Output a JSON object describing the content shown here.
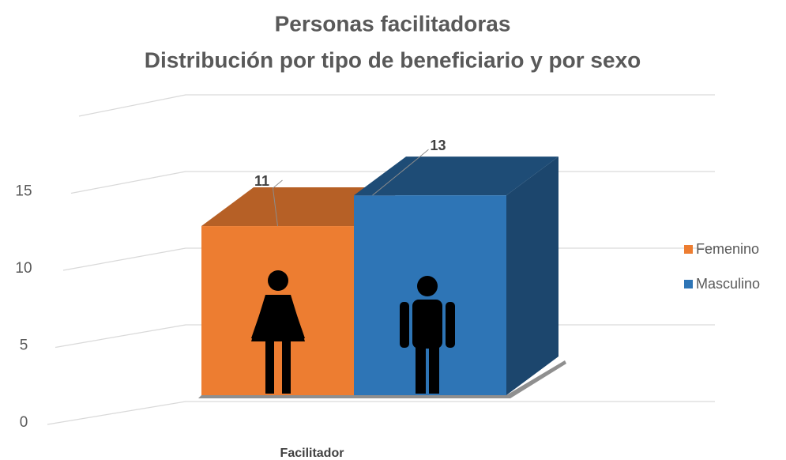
{
  "chart_data": {
    "type": "bar3d",
    "title": "Personas facilitadoras",
    "subtitle": "Distribución por tipo de beneficiario y por sexo",
    "categories": [
      "Facilitador"
    ],
    "series": [
      {
        "name": "Femenino",
        "color": "#ED7D31",
        "values": [
          11
        ]
      },
      {
        "name": "Masculino",
        "color": "#2E75B6",
        "values": [
          13
        ]
      }
    ],
    "ylim": [
      0,
      20
    ],
    "yticks": [
      0,
      5,
      10,
      15
    ],
    "grid": true,
    "legend": "right"
  }
}
